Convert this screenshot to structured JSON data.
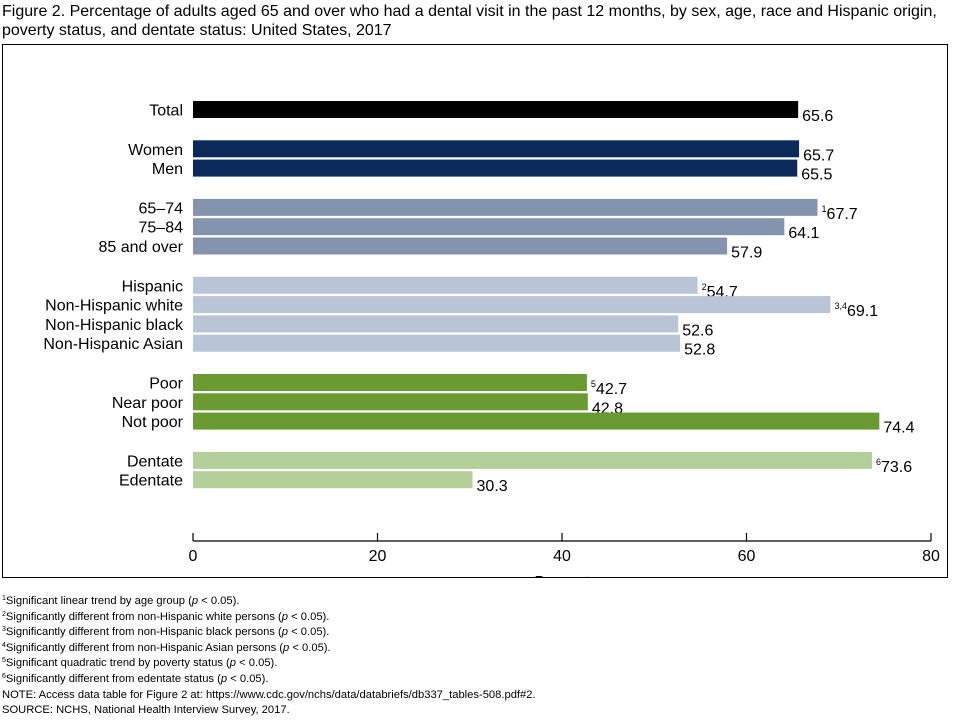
{
  "figure": {
    "title": "Figure 2. Percentage of adults aged 65 and over who had a dental visit in the past 12 months, by sex, age, race and Hispanic origin, poverty status, and dentate status: United States, 2017"
  },
  "chart_data": {
    "type": "bar",
    "orientation": "horizontal",
    "title": "",
    "xlabel": "Percent",
    "ylabel": "",
    "xlim": [
      0,
      80
    ],
    "xticks": [
      0,
      20,
      40,
      60,
      80
    ],
    "grid": false,
    "groups": [
      {
        "color": "#000000",
        "items": [
          {
            "category": "Total",
            "value": 65.6,
            "label": "65.6",
            "note": ""
          }
        ]
      },
      {
        "color": "#0b2a5b",
        "items": [
          {
            "category": "Women",
            "value": 65.7,
            "label": "65.7",
            "note": ""
          },
          {
            "category": "Men",
            "value": 65.5,
            "label": "65.5",
            "note": ""
          }
        ]
      },
      {
        "color": "#8494ae",
        "items": [
          {
            "category": "65–74",
            "value": 67.7,
            "label": "67.7",
            "note": "1"
          },
          {
            "category": "75–84",
            "value": 64.1,
            "label": "64.1",
            "note": ""
          },
          {
            "category": "85 and over",
            "value": 57.9,
            "label": "57.9",
            "note": ""
          }
        ]
      },
      {
        "color": "#b9c5d6",
        "items": [
          {
            "category": "Hispanic",
            "value": 54.7,
            "label": "54.7",
            "note": "2"
          },
          {
            "category": "Non-Hispanic white",
            "value": 69.1,
            "label": "69.1",
            "note": "3,4"
          },
          {
            "category": "Non-Hispanic black",
            "value": 52.6,
            "label": "52.6",
            "note": ""
          },
          {
            "category": "Non-Hispanic Asian",
            "value": 52.8,
            "label": "52.8",
            "note": ""
          }
        ]
      },
      {
        "color": "#6a9a32",
        "items": [
          {
            "category": "Poor",
            "value": 42.7,
            "label": "42.7",
            "note": "5"
          },
          {
            "category": "Near poor",
            "value": 42.8,
            "label": "42.8",
            "note": ""
          },
          {
            "category": "Not poor",
            "value": 74.4,
            "label": "74.4",
            "note": ""
          }
        ]
      },
      {
        "color": "#b5cf9a",
        "items": [
          {
            "category": "Dentate",
            "value": 73.6,
            "label": "73.6",
            "note": "6"
          },
          {
            "category": "Edentate",
            "value": 30.3,
            "label": "30.3",
            "note": ""
          }
        ]
      }
    ]
  },
  "notes": {
    "footnotes": [
      {
        "num": "1",
        "pre": "Significant linear trend by age group (",
        "p": "p",
        "post": " < 0.05)."
      },
      {
        "num": "2",
        "pre": "Significantly different from non-Hispanic white persons (",
        "p": "p",
        "post": " < 0.05)."
      },
      {
        "num": "3",
        "pre": "Significantly different from non-Hispanic black persons (",
        "p": "p",
        "post": " < 0.05)."
      },
      {
        "num": "4",
        "pre": "Significantly different from non-Hispanic Asian persons (",
        "p": "p",
        "post": " < 0.05)."
      },
      {
        "num": "5",
        "pre": "Significant quadratic trend by poverty status (",
        "p": "p",
        "post": " < 0.05)."
      },
      {
        "num": "6",
        "pre": "Significantly different from edentate status (",
        "p": "p",
        "post": " < 0.05)."
      }
    ],
    "note": "NOTE: Access data table for Figure 2 at: https://www.cdc.gov/nchs/data/databriefs/db337_tables-508.pdf#2.",
    "source": "SOURCE: NCHS, National Health Interview Survey, 2017."
  }
}
